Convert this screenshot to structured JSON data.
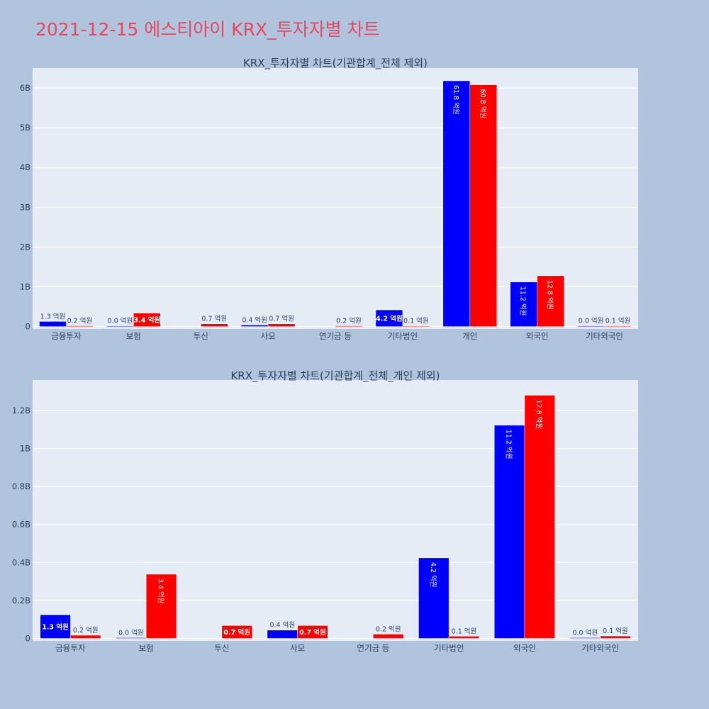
{
  "page": {
    "title": "2021-12-15 에스티아이 KRX_투자자별 차트",
    "background": "#b0c4de",
    "title_color": "#e8485e"
  },
  "chart_data": [
    {
      "type": "bar",
      "title": "KRX_투자자별 차트(기관합계_전체 제외)",
      "categories": [
        "금융투자",
        "보험",
        "투신",
        "사모",
        "연기금 등",
        "기타법인",
        "개인",
        "외국인",
        "기타외국인"
      ],
      "series": [
        {
          "color": "#0000ff",
          "values": [
            0.13,
            0.004,
            0,
            0.04,
            0,
            0.42,
            6.18,
            1.12,
            0.004
          ],
          "labels": [
            "1.3 억원",
            "0.0 억원",
            "",
            "0.4 억원",
            "",
            "4.2 억원",
            "61.8 억원",
            "11.2 억원",
            "0.0 억원"
          ]
        },
        {
          "color": "#ff0000",
          "values": [
            0.02,
            0.34,
            0.07,
            0.07,
            0.02,
            0.01,
            6.08,
            1.28,
            0.01
          ],
          "labels": [
            "0.2 억원",
            "3.4 억원",
            "0.7 억원",
            "0.7 억원",
            "0.2 억원",
            "0.1 억원",
            "60.8 억원",
            "12.8 억원",
            "0.1 억원"
          ]
        }
      ],
      "yunit": "B",
      "ylim": [
        -0.06,
        6.5
      ],
      "yticks": [
        0,
        1,
        2,
        3,
        4,
        5,
        6
      ],
      "ytick_labels": [
        "0",
        "1B",
        "2B",
        "3B",
        "4B",
        "5B",
        "6B"
      ],
      "plot_bg": "#e5ecf6",
      "grid": true,
      "legend": "none"
    },
    {
      "type": "bar",
      "title": "KRX_투자자별 차트(기관합계_전체_개인 제외)",
      "categories": [
        "금융투자",
        "보험",
        "투신",
        "사모",
        "연기금 등",
        "기타법인",
        "외국인",
        "기타외국인"
      ],
      "series": [
        {
          "color": "#0000ff",
          "values": [
            0.125,
            0.004,
            0,
            0.044,
            0,
            0.424,
            1.122,
            0.004
          ],
          "labels": [
            "1.3 억원",
            "0.0 억원",
            "",
            "0.4 억원",
            "",
            "4.2 억원",
            "11.2 억원",
            "0.0 억원"
          ]
        },
        {
          "color": "#ff0000",
          "values": [
            0.017,
            0.338,
            0.068,
            0.068,
            0.023,
            0.012,
            1.28,
            0.013
          ],
          "labels": [
            "0.2 억원",
            "3.4 억원",
            "0.7 억원",
            "0.7 억원",
            "0.2 억원",
            "0.1 억원",
            "12.8 억원",
            "0.1 억원"
          ]
        }
      ],
      "yunit": "B",
      "ylim": [
        -0.013,
        1.36
      ],
      "yticks": [
        0,
        0.2,
        0.4,
        0.6,
        0.8,
        1.0,
        1.2
      ],
      "ytick_labels": [
        "0",
        "0.2B",
        "0.4B",
        "0.6B",
        "0.8B",
        "1B",
        "1.2B"
      ],
      "plot_bg": "#e5ecf6",
      "grid": true,
      "legend": "none"
    }
  ]
}
